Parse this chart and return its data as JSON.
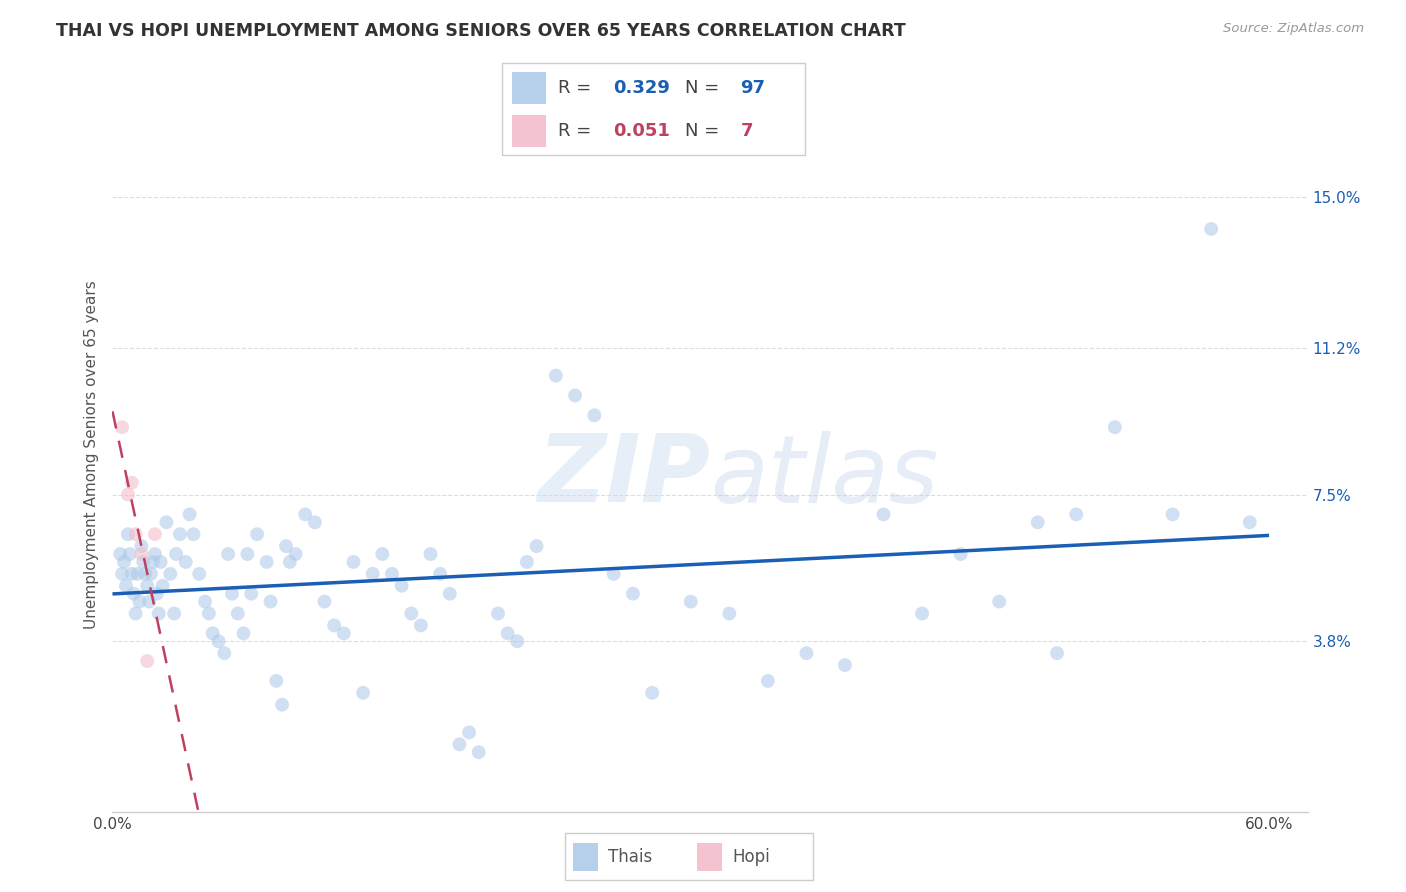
{
  "title": "THAI VS HOPI UNEMPLOYMENT AMONG SENIORS OVER 65 YEARS CORRELATION CHART",
  "source": "Source: ZipAtlas.com",
  "ylabel": "Unemployment Among Seniors over 65 years",
  "xlim": [
    0.0,
    0.62
  ],
  "ylim": [
    -0.005,
    0.175
  ],
  "yticks": [
    0.038,
    0.075,
    0.112,
    0.15
  ],
  "ytick_labels": [
    "3.8%",
    "7.5%",
    "11.2%",
    "15.0%"
  ],
  "xticks": [
    0.0,
    0.12,
    0.24,
    0.36,
    0.48,
    0.6
  ],
  "xtick_labels": [
    "0.0%",
    "",
    "",
    "",
    "",
    "60.0%"
  ],
  "watermark_zip": "ZIP",
  "watermark_atlas": "atlas",
  "legend_thai_R": "0.329",
  "legend_thai_N": "97",
  "legend_hopi_R": "0.051",
  "legend_hopi_N": "7",
  "thai_color": "#aac8e8",
  "hopi_color": "#f4b8c8",
  "thai_line_color": "#1a5fb4",
  "hopi_line_color": "#c04060",
  "background_color": "#ffffff",
  "grid_color": "#dddddd",
  "marker_size": 100,
  "marker_alpha": 0.55,
  "thai_x": [
    0.004,
    0.005,
    0.006,
    0.007,
    0.008,
    0.009,
    0.01,
    0.011,
    0.012,
    0.013,
    0.014,
    0.015,
    0.016,
    0.017,
    0.018,
    0.019,
    0.02,
    0.021,
    0.022,
    0.023,
    0.024,
    0.025,
    0.026,
    0.028,
    0.03,
    0.032,
    0.033,
    0.035,
    0.038,
    0.04,
    0.042,
    0.045,
    0.048,
    0.05,
    0.052,
    0.055,
    0.058,
    0.06,
    0.062,
    0.065,
    0.068,
    0.07,
    0.072,
    0.075,
    0.08,
    0.082,
    0.085,
    0.088,
    0.09,
    0.092,
    0.095,
    0.1,
    0.105,
    0.11,
    0.115,
    0.12,
    0.125,
    0.13,
    0.135,
    0.14,
    0.145,
    0.15,
    0.155,
    0.16,
    0.165,
    0.17,
    0.175,
    0.18,
    0.185,
    0.19,
    0.2,
    0.205,
    0.21,
    0.215,
    0.22,
    0.23,
    0.24,
    0.25,
    0.26,
    0.27,
    0.28,
    0.3,
    0.32,
    0.34,
    0.36,
    0.38,
    0.4,
    0.42,
    0.44,
    0.46,
    0.48,
    0.49,
    0.5,
    0.52,
    0.55,
    0.57,
    0.59
  ],
  "thai_y": [
    0.06,
    0.055,
    0.058,
    0.052,
    0.065,
    0.06,
    0.055,
    0.05,
    0.045,
    0.055,
    0.048,
    0.062,
    0.058,
    0.055,
    0.052,
    0.048,
    0.055,
    0.058,
    0.06,
    0.05,
    0.045,
    0.058,
    0.052,
    0.068,
    0.055,
    0.045,
    0.06,
    0.065,
    0.058,
    0.07,
    0.065,
    0.055,
    0.048,
    0.045,
    0.04,
    0.038,
    0.035,
    0.06,
    0.05,
    0.045,
    0.04,
    0.06,
    0.05,
    0.065,
    0.058,
    0.048,
    0.028,
    0.022,
    0.062,
    0.058,
    0.06,
    0.07,
    0.068,
    0.048,
    0.042,
    0.04,
    0.058,
    0.025,
    0.055,
    0.06,
    0.055,
    0.052,
    0.045,
    0.042,
    0.06,
    0.055,
    0.05,
    0.012,
    0.015,
    0.01,
    0.045,
    0.04,
    0.038,
    0.058,
    0.062,
    0.105,
    0.1,
    0.095,
    0.055,
    0.05,
    0.025,
    0.048,
    0.045,
    0.028,
    0.035,
    0.032,
    0.07,
    0.045,
    0.06,
    0.048,
    0.068,
    0.035,
    0.07,
    0.092,
    0.07,
    0.142,
    0.068
  ],
  "hopi_x": [
    0.005,
    0.008,
    0.01,
    0.012,
    0.015,
    0.018,
    0.022
  ],
  "hopi_y": [
    0.092,
    0.075,
    0.078,
    0.065,
    0.06,
    0.033,
    0.065
  ]
}
